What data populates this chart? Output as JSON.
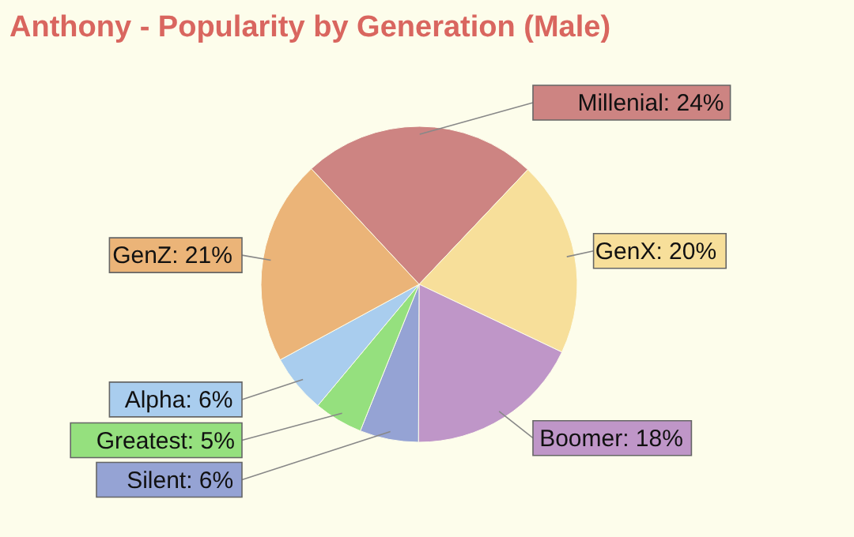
{
  "chart_data": {
    "type": "pie",
    "title": "Anthony - Popularity by Generation (Male)",
    "categories": [
      "Millenial",
      "GenX",
      "Boomer",
      "Silent",
      "Greatest",
      "Alpha",
      "GenZ"
    ],
    "values": [
      24,
      20,
      18,
      6,
      5,
      6,
      21
    ],
    "colors": [
      "#cd8482",
      "#f7df9a",
      "#bf96c8",
      "#95a3d4",
      "#95e07e",
      "#a9cdee",
      "#ebb478"
    ],
    "value_labels": [
      ": 24%",
      ": 20%",
      ": 18%",
      ": 6%",
      ": 5%",
      ": 6%",
      ": 21%"
    ],
    "legend": false
  }
}
